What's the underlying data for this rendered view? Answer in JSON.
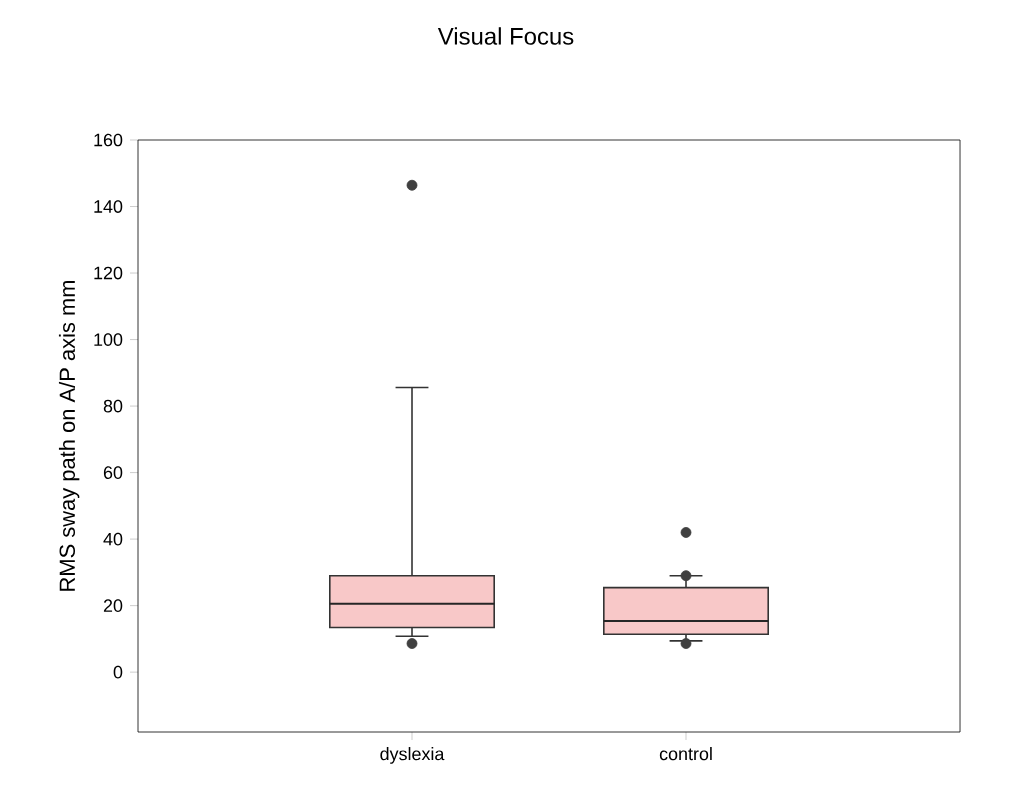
{
  "chart_data": {
    "type": "box",
    "title": "Visual Focus",
    "ylabel": "RMS sway path on A/P axis mm",
    "categories": [
      "dyslexia",
      "control"
    ],
    "boxes": [
      {
        "low": 10.8,
        "q1": 13.4,
        "median": 20.6,
        "q3": 29,
        "high": 85.6,
        "outliers": [
          146.4,
          8.6
        ]
      },
      {
        "low": 9.4,
        "q1": 11.4,
        "median": 15.4,
        "q3": 25.4,
        "high": 29,
        "outliers": [
          42,
          29,
          8.6
        ]
      }
    ],
    "color": "#f8c8c8",
    "ylim": [
      -18,
      160
    ],
    "yticks": [
      0,
      20,
      40,
      60,
      80,
      100,
      120,
      140,
      160
    ],
    "grid": false
  }
}
